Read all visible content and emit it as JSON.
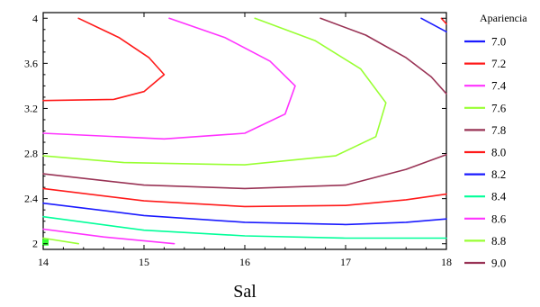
{
  "chart_data": {
    "type": "contour",
    "title": "",
    "xlabel": "Sal",
    "ylabel": "",
    "xlim": [
      14,
      18
    ],
    "ylim": [
      1.95,
      4.05
    ],
    "xticks": [
      14,
      15,
      16,
      17,
      18
    ],
    "yticks": [
      2,
      2.4,
      2.8,
      3.2,
      3.6,
      4
    ],
    "xtick_labels": [
      "14",
      "15",
      "16",
      "17",
      "18"
    ],
    "ytick_labels": [
      "2",
      "2.4",
      "2.8",
      "3.2",
      "3.6",
      "4"
    ],
    "grid": false,
    "legend_position": "right",
    "legend": {
      "title": "Apariencia",
      "entries": [
        {
          "label": "7.0",
          "color": "#1a1aff"
        },
        {
          "label": "7.2",
          "color": "#ff1a1a"
        },
        {
          "label": "7.4",
          "color": "#ff33ff"
        },
        {
          "label": "7.6",
          "color": "#99ff33"
        },
        {
          "label": "7.8",
          "color": "#993355"
        },
        {
          "label": "8.0",
          "color": "#ff1a1a"
        },
        {
          "label": "8.2",
          "color": "#1a1aff"
        },
        {
          "label": "8.4",
          "color": "#00ff99"
        },
        {
          "label": "8.6",
          "color": "#ff33ff"
        },
        {
          "label": "8.8",
          "color": "#99ff33"
        },
        {
          "label": "9.0",
          "color": "#993355"
        }
      ]
    },
    "series": [
      {
        "level": "7.0",
        "color": "#1a1aff",
        "points": [
          [
            17.75,
            4.0
          ],
          [
            18.0,
            3.88
          ]
        ]
      },
      {
        "level": "7.2",
        "color": "#ff1a1a",
        "points": [
          [
            14.35,
            4.0
          ],
          [
            14.75,
            3.83
          ],
          [
            15.05,
            3.65
          ],
          [
            15.2,
            3.5
          ],
          [
            15.0,
            3.35
          ],
          [
            14.7,
            3.28
          ],
          [
            14.0,
            3.27
          ]
        ]
      },
      {
        "level": "7.2",
        "color": "#ff1a1a",
        "points": [
          [
            17.95,
            4.0
          ],
          [
            18.0,
            3.95
          ]
        ]
      },
      {
        "level": "7.4",
        "color": "#ff33ff",
        "points": [
          [
            15.25,
            4.0
          ],
          [
            15.8,
            3.83
          ],
          [
            16.25,
            3.62
          ],
          [
            16.5,
            3.4
          ],
          [
            16.4,
            3.15
          ],
          [
            16.0,
            2.98
          ],
          [
            15.2,
            2.93
          ],
          [
            14.0,
            2.98
          ]
        ]
      },
      {
        "level": "7.6",
        "color": "#99ff33",
        "points": [
          [
            16.1,
            4.0
          ],
          [
            16.7,
            3.8
          ],
          [
            17.15,
            3.55
          ],
          [
            17.4,
            3.25
          ],
          [
            17.3,
            2.95
          ],
          [
            16.9,
            2.78
          ],
          [
            16.0,
            2.7
          ],
          [
            14.8,
            2.72
          ],
          [
            14.0,
            2.78
          ]
        ]
      },
      {
        "level": "7.8",
        "color": "#993355",
        "points": [
          [
            16.75,
            4.0
          ],
          [
            17.2,
            3.85
          ],
          [
            17.6,
            3.65
          ],
          [
            17.85,
            3.48
          ],
          [
            18.0,
            3.33
          ]
        ]
      },
      {
        "level": "7.8",
        "color": "#993355",
        "points": [
          [
            14.0,
            2.62
          ],
          [
            15.0,
            2.52
          ],
          [
            16.0,
            2.49
          ],
          [
            17.0,
            2.52
          ],
          [
            17.6,
            2.66
          ],
          [
            18.0,
            2.79
          ]
        ]
      },
      {
        "level": "8.0",
        "color": "#ff1a1a",
        "points": [
          [
            14.0,
            2.49
          ],
          [
            15.0,
            2.38
          ],
          [
            16.0,
            2.33
          ],
          [
            17.0,
            2.34
          ],
          [
            17.6,
            2.39
          ],
          [
            18.0,
            2.44
          ]
        ]
      },
      {
        "level": "8.2",
        "color": "#1a1aff",
        "points": [
          [
            14.0,
            2.36
          ],
          [
            15.0,
            2.25
          ],
          [
            16.0,
            2.19
          ],
          [
            17.0,
            2.17
          ],
          [
            17.6,
            2.19
          ],
          [
            18.0,
            2.22
          ]
        ]
      },
      {
        "level": "8.4",
        "color": "#00ff99",
        "points": [
          [
            14.0,
            2.24
          ],
          [
            15.0,
            2.12
          ],
          [
            16.0,
            2.07
          ],
          [
            17.0,
            2.05
          ],
          [
            18.0,
            2.05
          ]
        ]
      },
      {
        "level": "8.6",
        "color": "#ff33ff",
        "points": [
          [
            14.0,
            2.13
          ],
          [
            14.6,
            2.06
          ],
          [
            15.3,
            2.0
          ]
        ]
      },
      {
        "level": "8.8",
        "color": "#99ff33",
        "points": [
          [
            14.0,
            2.05
          ],
          [
            14.35,
            2.0
          ]
        ]
      }
    ],
    "markers": [
      {
        "shape": "square",
        "color": "#33ff33",
        "x": 14.0,
        "y": 2.0
      }
    ]
  }
}
